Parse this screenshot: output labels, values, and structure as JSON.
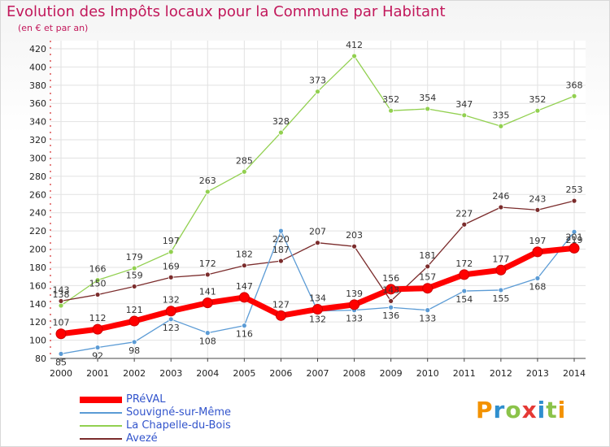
{
  "header": {
    "title": "Evolution des Impôts locaux pour la Commune par Habitant",
    "subtitle": "(en € et par an)"
  },
  "logo": {
    "text": "Proxiti"
  },
  "chart_data": {
    "type": "line",
    "x": [
      "2000",
      "2001",
      "2002",
      "2003",
      "2004",
      "2005",
      "2006",
      "2007",
      "2008",
      "2009",
      "2010",
      "2011",
      "2012",
      "2013",
      "2014"
    ],
    "ylim": [
      80,
      420
    ],
    "y_ticks": [
      80,
      100,
      120,
      140,
      160,
      180,
      200,
      220,
      240,
      260,
      280,
      300,
      320,
      340,
      360,
      380,
      400,
      420
    ],
    "grid": true,
    "legend_position": "bottom-left",
    "series": [
      {
        "name": "PRéVAL",
        "color": "#ff0000",
        "values": [
          107,
          112,
          121,
          132,
          141,
          147,
          127,
          134,
          139,
          156,
          157,
          172,
          177,
          197,
          201
        ]
      },
      {
        "name": "Souvigné-sur-Même",
        "color": "#5b9bd5",
        "values": [
          85,
          92,
          98,
          123,
          108,
          116,
          220,
          132,
          133,
          136,
          133,
          154,
          155,
          168,
          219
        ]
      },
      {
        "name": "La Chapelle-du-Bois",
        "color": "#92d050",
        "values": [
          138,
          166,
          179,
          197,
          263,
          285,
          328,
          373,
          412,
          352,
          354,
          347,
          335,
          352,
          368
        ]
      },
      {
        "name": "Avezé",
        "color": "#7b2c2c",
        "values": [
          143,
          150,
          159,
          169,
          172,
          182,
          187,
          207,
          203,
          143,
          181,
          227,
          246,
          243,
          253
        ]
      }
    ]
  }
}
